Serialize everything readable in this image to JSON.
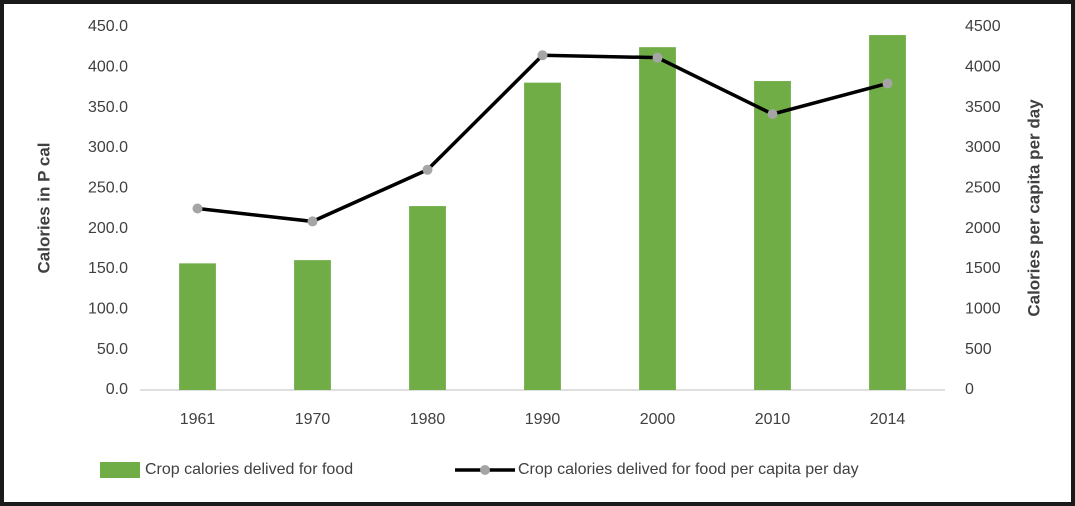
{
  "chart_data": {
    "type": "combo",
    "categories": [
      "1961",
      "1970",
      "1980",
      "1990",
      "2000",
      "2010",
      "2014"
    ],
    "series": [
      {
        "name": "Crop calories delived for food",
        "type": "bar",
        "color": "#70ad47",
        "values": [
          157,
          161,
          228,
          381,
          425,
          383,
          440
        ]
      },
      {
        "name": "Crop calories delived for food per capita per day",
        "type": "line",
        "axis": "y2",
        "color": "#000000",
        "marker_color": "#a5a5a5",
        "values": [
          2250,
          2090,
          2730,
          4150,
          4120,
          3420,
          3800
        ]
      }
    ],
    "y_label": "Calories in P cal",
    "y2_label": "Calories per capita per day",
    "ylim": [
      0,
      450
    ],
    "yticks": [
      {
        "value": 0,
        "label": "0.0"
      },
      {
        "value": 50,
        "label": "50.0"
      },
      {
        "value": 100,
        "label": "100.0"
      },
      {
        "value": 150,
        "label": "150.0"
      },
      {
        "value": 200,
        "label": "200.0"
      },
      {
        "value": 250,
        "label": "250.0"
      },
      {
        "value": 300,
        "label": "300.0"
      },
      {
        "value": 350,
        "label": "350.0"
      },
      {
        "value": 400,
        "label": "400.0"
      },
      {
        "value": 450,
        "label": "450.0"
      }
    ],
    "y2lim": [
      0,
      4500
    ],
    "y2ticks": [
      0,
      500,
      1000,
      1500,
      2000,
      2500,
      3000,
      3500,
      4000,
      4500
    ],
    "grid": false,
    "legend": "bottom"
  }
}
